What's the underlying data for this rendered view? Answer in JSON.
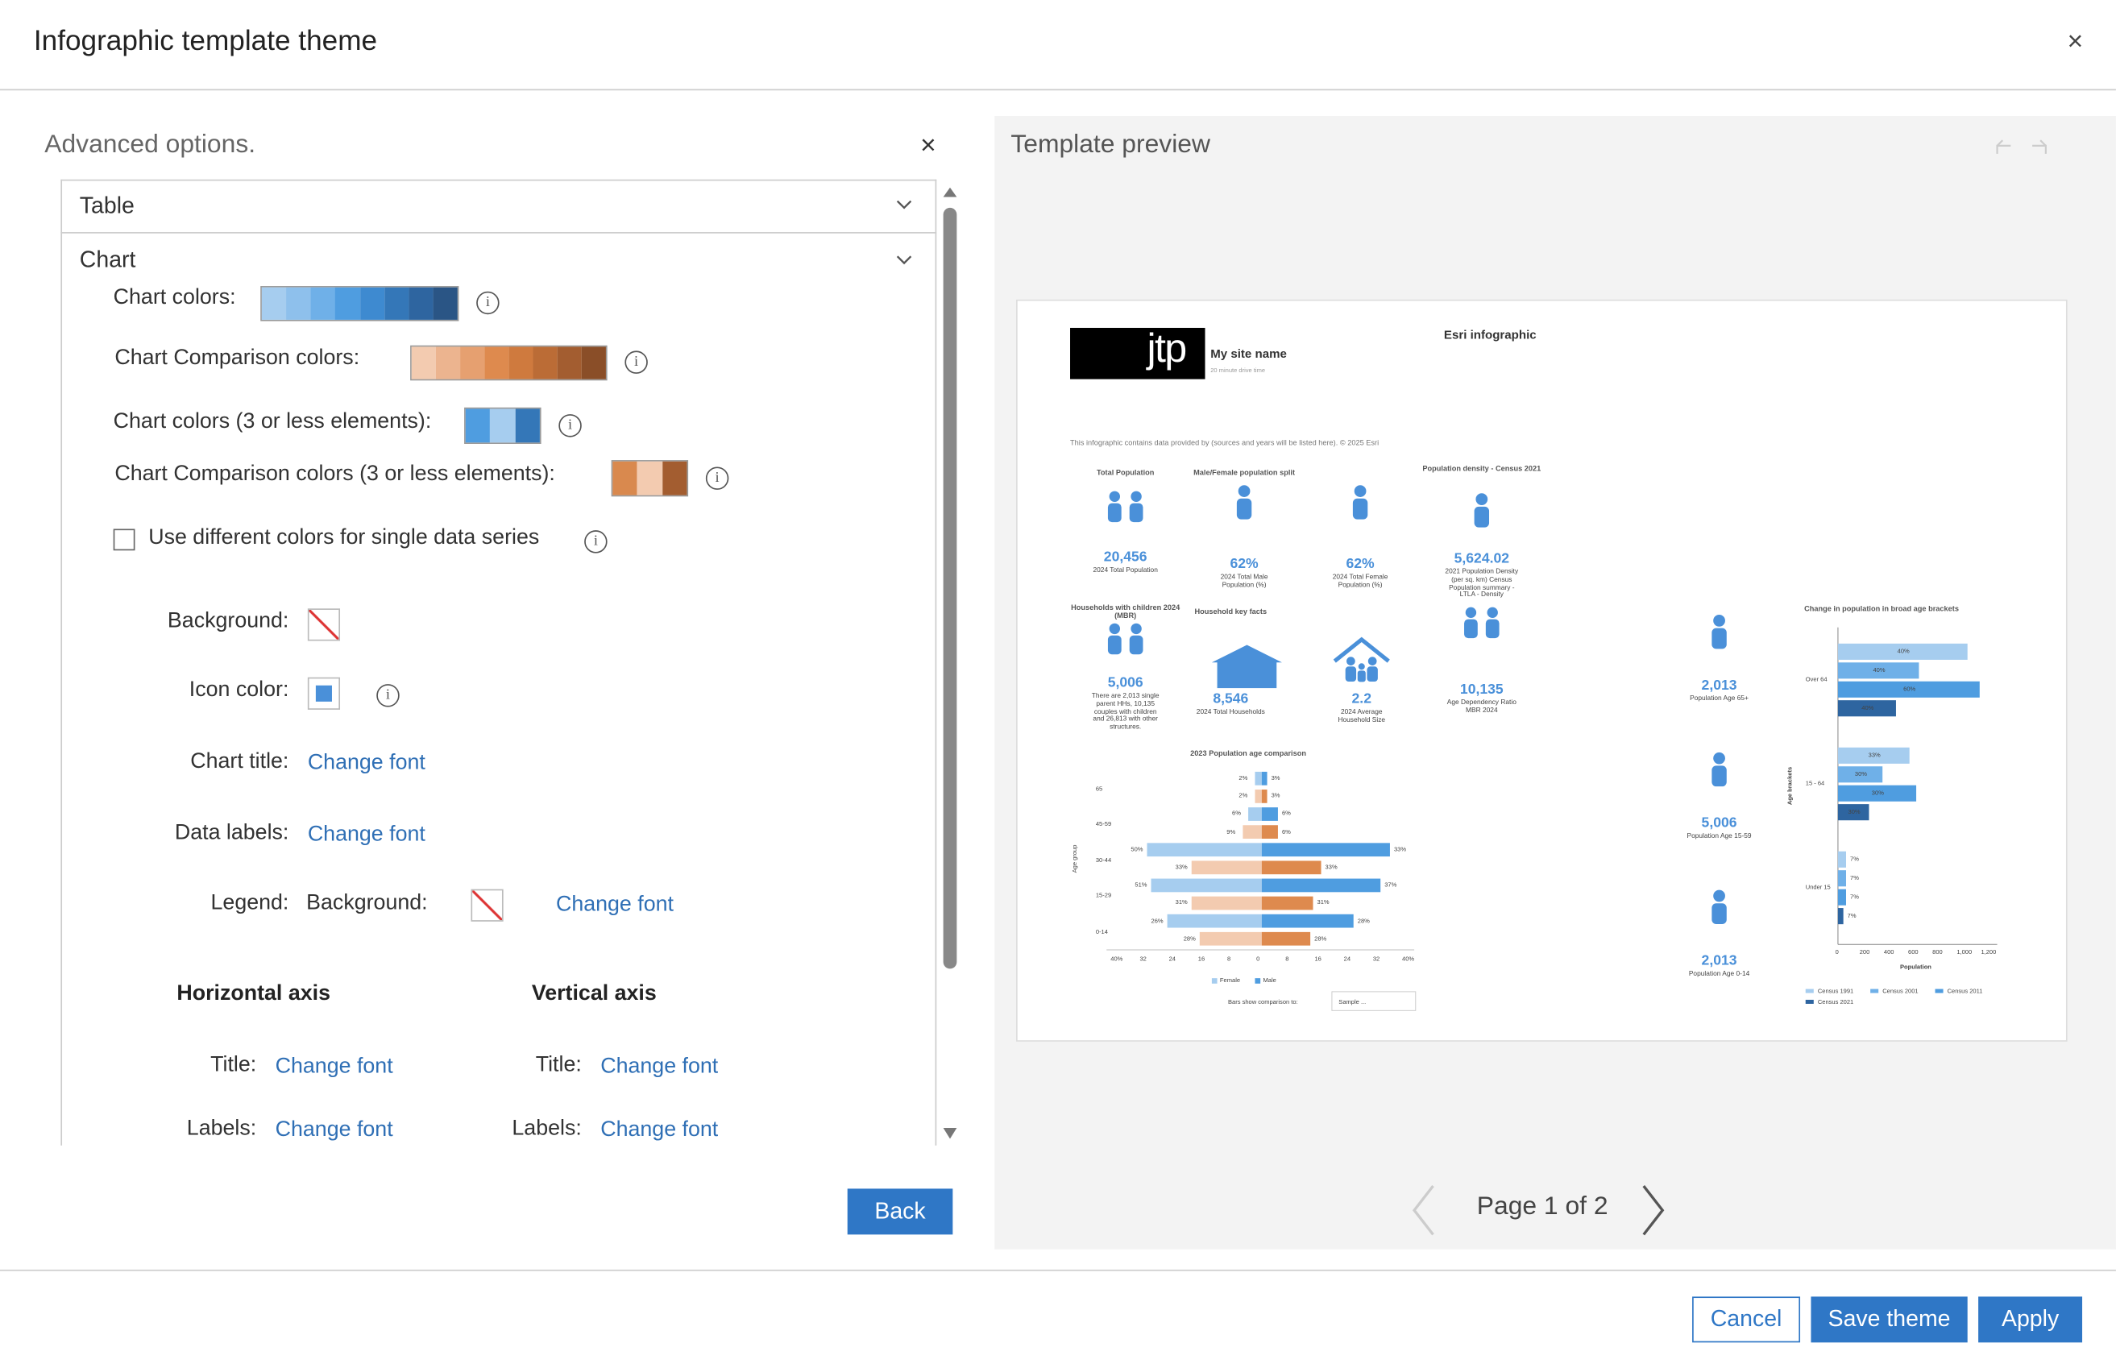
{
  "dialog": {
    "title": "Infographic template theme"
  },
  "advanced": {
    "title": "Advanced options.",
    "table": "Table",
    "chart": "Chart",
    "chart_colors": "Chart colors:",
    "comparison_colors": "Chart Comparison colors:",
    "chart_colors_3": "Chart colors (3 or less elements):",
    "comparison_colors_3": "Chart Comparison colors (3 or less elements):",
    "different_colors": "Use different colors for single data series",
    "background": "Background:",
    "icon_color": "Icon color:",
    "chart_title": "Chart title:",
    "data_labels": "Data labels:",
    "legend": "Legend:",
    "change_font": "Change font",
    "horizontal_axis": "Horizontal axis",
    "vertical_axis": "Vertical axis",
    "axis_title": "Title:",
    "axis_labels": "Labels:"
  },
  "back": "Back",
  "preview": {
    "title": "Template preview",
    "page": "Page 1 of 2",
    "infographic": {
      "logo": "jtp",
      "site_name": "My site name",
      "site_subtitle": "20 minute drive time",
      "title": "Esri infographic",
      "disclaimer": "This infographic contains data provided by (sources and years will be listed here). © 2025 Esri",
      "stats": [
        {
          "heading": "Total Population",
          "value": "20,456",
          "caption": "2024 Total Population"
        },
        {
          "heading": "Male/Female population split",
          "value": "62%",
          "caption": "2024 Total Male Population (%)"
        },
        {
          "value": "62%",
          "caption": "2024 Total Female Population (%)"
        },
        {
          "heading": "Population density - Census 2021",
          "value": "5,624.02",
          "caption": "2021 Population Density (per sq. km) Census Population summary - LTLA - Density"
        },
        {
          "heading": "Households with children 2024 (MBR)",
          "value": "5,006",
          "caption": "There are 2,013 single parent HHs, 10,135 couples with children and 26,813 with other structures."
        },
        {
          "heading": "Household key facts",
          "value": "8,546",
          "caption": "2024 Total Households"
        },
        {
          "value": "2.2",
          "caption": "2024 Average Household Size"
        },
        {
          "value": "10,135",
          "caption": "Age Dependency Ratio MBR 2024"
        },
        {
          "value": "2,013",
          "caption": "Population Age 65+"
        },
        {
          "value": "5,006",
          "caption": "Population Age 15-59"
        },
        {
          "value": "2,013",
          "caption": "Population Age 0-14"
        }
      ],
      "pyramid": {
        "title": "2023 Population age comparison",
        "axis_title": "Age group",
        "groups": [
          "65",
          "45-59",
          "30-44",
          "15-29",
          "0-14"
        ],
        "rows": [
          [
            "2%",
            "3%"
          ],
          [
            "2%",
            "3%"
          ],
          [
            "6%",
            "6%"
          ],
          [
            "9%",
            "6%"
          ],
          [
            "50%",
            "33%"
          ],
          [
            "33%",
            "33%"
          ],
          [
            "51%",
            "37%"
          ],
          [
            "31%",
            "31%"
          ],
          [
            "26%",
            "28%"
          ],
          [
            "28%",
            "28%"
          ]
        ],
        "ticks": [
          "40%",
          "32",
          "24",
          "16",
          "8",
          "0",
          "8",
          "16",
          "24",
          "32",
          "40%"
        ],
        "legend": [
          "Female",
          "Male"
        ],
        "compare_label": "Bars show comparison to:",
        "compare_value": "Sample ..."
      },
      "brackets": {
        "title": "Change in population in broad age brackets",
        "axis_title": "Age brackets",
        "x_title": "Population",
        "groups": [
          "Over 64",
          "15 - 64",
          "Under 15"
        ],
        "labels": [
          [
            "40%",
            "40%",
            "60%",
            "40%"
          ],
          [
            "33%",
            "30%",
            "30%",
            "30%"
          ],
          [
            "7%",
            "7%",
            "7%",
            "7%"
          ]
        ],
        "ticks": [
          "0",
          "200",
          "400",
          "600",
          "800",
          "1,000",
          "1,200"
        ],
        "legend": [
          "Census 1991",
          "Census 2001",
          "Census 2011",
          "Census 2021"
        ]
      }
    }
  },
  "footer": {
    "cancel": "Cancel",
    "save": "Save theme",
    "apply": "Apply"
  }
}
